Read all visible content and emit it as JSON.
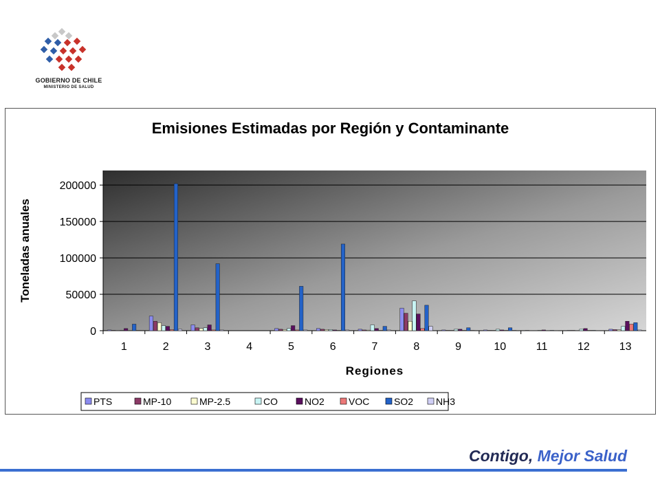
{
  "header": {
    "logo_line1": "GOBIERNO DE CHILE",
    "logo_line2": "MINISTERIO DE SALUD",
    "logo_colors": {
      "blue": "#2f5ea8",
      "red": "#c8322a",
      "gray": "#c8c8c8"
    }
  },
  "footer": {
    "tagline_part1": "Contigo,",
    "tagline_part2": "Mejor Salud",
    "line_color": "#3b6fd1"
  },
  "chart_data": {
    "type": "bar",
    "title": "Emisiones Estimadas por Región y Contaminante",
    "xlabel": "Regiones",
    "ylabel": "Toneladas anuales",
    "ylim": [
      0,
      220000
    ],
    "yticks": [
      0,
      50000,
      100000,
      150000,
      200000
    ],
    "grid": true,
    "legend_position": "bottom",
    "categories": [
      "1",
      "2",
      "3",
      "4",
      "5",
      "6",
      "7",
      "8",
      "9",
      "10",
      "11",
      "12",
      "13"
    ],
    "series": [
      {
        "name": "PTS",
        "color": "#8b8bef",
        "values": [
          1000,
          20000,
          8000,
          0,
          3000,
          3000,
          2000,
          31000,
          1000,
          1000,
          500,
          500,
          2000
        ]
      },
      {
        "name": "MP-10",
        "color": "#8b3a66",
        "values": [
          500,
          13000,
          4000,
          0,
          2000,
          2000,
          1000,
          24000,
          500,
          500,
          300,
          500,
          1500
        ]
      },
      {
        "name": "MP-2.5",
        "color": "#fbfbd0",
        "values": [
          300,
          11000,
          3000,
          0,
          1500,
          1500,
          800,
          13000,
          500,
          500,
          300,
          300,
          1200
        ]
      },
      {
        "name": "CO",
        "color": "#c8f4f4",
        "values": [
          500,
          7000,
          4000,
          0,
          3000,
          1500,
          8000,
          41000,
          2000,
          2000,
          500,
          2000,
          6000
        ]
      },
      {
        "name": "NO2",
        "color": "#5a0f5e",
        "values": [
          3000,
          6000,
          8000,
          0,
          7000,
          1000,
          3000,
          23000,
          2000,
          1000,
          1000,
          3000,
          13000
        ]
      },
      {
        "name": "VOC",
        "color": "#ec7878",
        "values": [
          300,
          1500,
          1000,
          0,
          1000,
          500,
          500,
          3000,
          500,
          500,
          300,
          500,
          9000
        ]
      },
      {
        "name": "SO2",
        "color": "#2362c8",
        "values": [
          9000,
          202000,
          92000,
          0,
          61000,
          119000,
          6000,
          35000,
          4000,
          4000,
          500,
          500,
          11000
        ]
      },
      {
        "name": "NH3",
        "color": "#d0cff5",
        "values": [
          500,
          2000,
          1000,
          0,
          1000,
          1000,
          1000,
          6000,
          500,
          500,
          300,
          300,
          1000
        ]
      }
    ]
  }
}
